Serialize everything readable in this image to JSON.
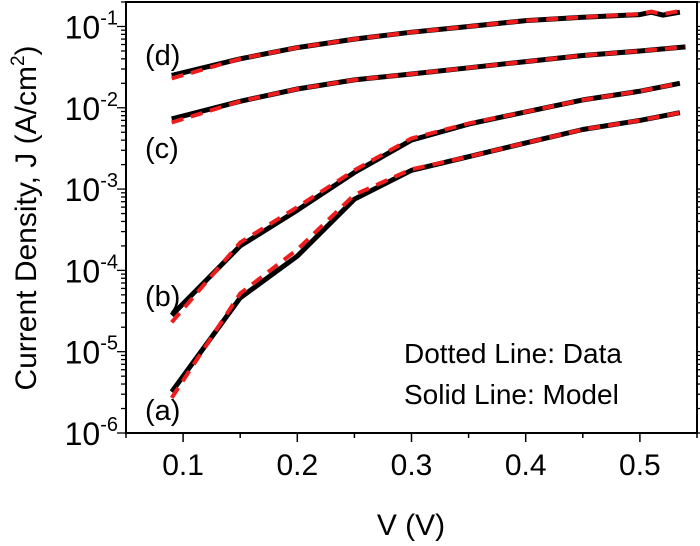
{
  "chart_data": {
    "type": "line",
    "xlabel": "V (V)",
    "ylabel": "Current Density, J (A/cm",
    "ylabel_sup": "2",
    "ylabel_end": ")",
    "xlim": [
      0.05,
      0.55
    ],
    "ylim": [
      1e-06,
      0.2
    ],
    "yscale": "log",
    "grid": false,
    "x_ticks": [
      "0.1",
      "0.2",
      "0.3",
      "0.4",
      "0.5"
    ],
    "x_tick_values": [
      0.1,
      0.2,
      0.3,
      0.4,
      0.5
    ],
    "y_ticks": [
      {
        "base": "10",
        "exp": "-6",
        "value": 1e-06
      },
      {
        "base": "10",
        "exp": "-5",
        "value": 1e-05
      },
      {
        "base": "10",
        "exp": "-4",
        "value": 0.0001
      },
      {
        "base": "10",
        "exp": "-3",
        "value": 0.001
      },
      {
        "base": "10",
        "exp": "-2",
        "value": 0.01
      },
      {
        "base": "10",
        "exp": "-1",
        "value": 0.1
      }
    ],
    "annotations": [
      {
        "text": "Dotted Line: Data"
      },
      {
        "text": "Solid Line: Model"
      }
    ],
    "curve_labels": [
      "(a)",
      "(b)",
      "(c)",
      "(d)"
    ],
    "colors": {
      "data": "#ee1c1c",
      "model": "#000000"
    },
    "series": [
      {
        "curve": "(a)",
        "kind": "model",
        "x": [
          0.09,
          0.15,
          0.2,
          0.25,
          0.3,
          0.35,
          0.4,
          0.45,
          0.5,
          0.535
        ],
        "y": [
          3.2e-06,
          4.6e-05,
          0.00015,
          0.00075,
          0.0017,
          0.0025,
          0.0037,
          0.0054,
          0.007,
          0.0087
        ]
      },
      {
        "curve": "(a)",
        "kind": "data",
        "x": [
          0.09,
          0.15,
          0.2,
          0.25,
          0.3,
          0.35,
          0.4,
          0.45,
          0.5,
          0.535
        ],
        "y": [
          2.7e-06,
          5.2e-05,
          0.00018,
          0.00085,
          0.00175,
          0.0025,
          0.0037,
          0.0054,
          0.007,
          0.0087
        ]
      },
      {
        "curve": "(b)",
        "kind": "model",
        "x": [
          0.09,
          0.15,
          0.2,
          0.25,
          0.3,
          0.35,
          0.4,
          0.45,
          0.5,
          0.535
        ],
        "y": [
          2.8e-05,
          0.0002,
          0.00055,
          0.0016,
          0.004,
          0.0063,
          0.0089,
          0.0125,
          0.016,
          0.02
        ]
      },
      {
        "curve": "(b)",
        "kind": "data",
        "x": [
          0.09,
          0.15,
          0.2,
          0.25,
          0.3,
          0.35,
          0.4,
          0.45,
          0.5,
          0.535
        ],
        "y": [
          2.3e-05,
          0.00022,
          0.0006,
          0.0017,
          0.0042,
          0.0064,
          0.0089,
          0.0125,
          0.016,
          0.02
        ]
      },
      {
        "curve": "(c)",
        "kind": "model",
        "x": [
          0.09,
          0.15,
          0.2,
          0.25,
          0.3,
          0.35,
          0.4,
          0.45,
          0.5,
          0.54
        ],
        "y": [
          0.0073,
          0.012,
          0.017,
          0.022,
          0.026,
          0.031,
          0.037,
          0.044,
          0.05,
          0.056
        ]
      },
      {
        "curve": "(c)",
        "kind": "data",
        "x": [
          0.09,
          0.15,
          0.2,
          0.25,
          0.3,
          0.35,
          0.4,
          0.45,
          0.5,
          0.54
        ],
        "y": [
          0.0066,
          0.012,
          0.017,
          0.022,
          0.026,
          0.031,
          0.037,
          0.044,
          0.05,
          0.056
        ]
      },
      {
        "curve": "(d)",
        "kind": "model",
        "x": [
          0.09,
          0.15,
          0.2,
          0.25,
          0.3,
          0.35,
          0.4,
          0.45,
          0.5,
          0.51,
          0.52,
          0.535
        ],
        "y": [
          0.025,
          0.04,
          0.055,
          0.07,
          0.085,
          0.1,
          0.118,
          0.13,
          0.14,
          0.15,
          0.138,
          0.15
        ]
      },
      {
        "curve": "(d)",
        "kind": "data",
        "x": [
          0.09,
          0.15,
          0.2,
          0.25,
          0.3,
          0.35,
          0.4,
          0.45,
          0.5,
          0.51,
          0.52,
          0.535
        ],
        "y": [
          0.023,
          0.04,
          0.055,
          0.07,
          0.085,
          0.1,
          0.118,
          0.13,
          0.142,
          0.152,
          0.142,
          0.155
        ]
      }
    ]
  }
}
